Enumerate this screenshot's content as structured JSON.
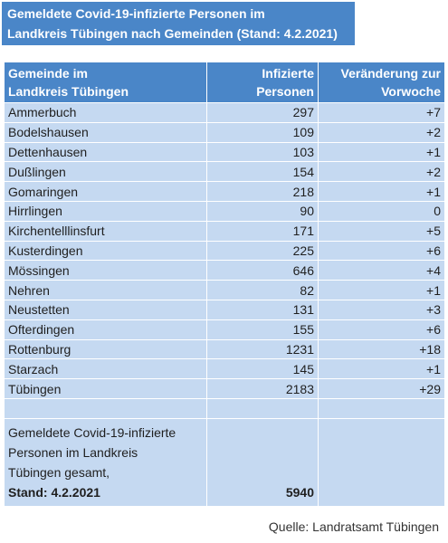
{
  "title": {
    "line1": "Gemeldete Covid-19-infizierte Personen im",
    "line2": "Landkreis Tübingen nach Gemeinden (Stand: 4.2.2021)"
  },
  "table": {
    "headers": {
      "gemeinde_line1": "Gemeinde im",
      "gemeinde_line2": "Landkreis Tübingen",
      "infizierte_line1": "Infizierte",
      "infizierte_line2": "Personen",
      "veraenderung_line1": "Veränderung zur",
      "veraenderung_line2": "Vorwoche"
    },
    "rows": [
      {
        "gemeinde": "Ammerbuch",
        "infizierte": "297",
        "veraenderung": "+7"
      },
      {
        "gemeinde": "Bodelshausen",
        "infizierte": "109",
        "veraenderung": "+2"
      },
      {
        "gemeinde": "Dettenhausen",
        "infizierte": "103",
        "veraenderung": "+1"
      },
      {
        "gemeinde": "Dußlingen",
        "infizierte": "154",
        "veraenderung": "+2"
      },
      {
        "gemeinde": "Gomaringen",
        "infizierte": "218",
        "veraenderung": "+1"
      },
      {
        "gemeinde": "Hirrlingen",
        "infizierte": "90",
        "veraenderung": "0"
      },
      {
        "gemeinde": "Kirchentelllinsfurt",
        "infizierte": "171",
        "veraenderung": "+5"
      },
      {
        "gemeinde": "Kusterdingen",
        "infizierte": "225",
        "veraenderung": "+6"
      },
      {
        "gemeinde": "Mössingen",
        "infizierte": "646",
        "veraenderung": "+4"
      },
      {
        "gemeinde": "Nehren",
        "infizierte": "82",
        "veraenderung": "+1"
      },
      {
        "gemeinde": "Neustetten",
        "infizierte": "131",
        "veraenderung": "+3"
      },
      {
        "gemeinde": "Ofterdingen",
        "infizierte": "155",
        "veraenderung": "+6"
      },
      {
        "gemeinde": "Rottenburg",
        "infizierte": "1231",
        "veraenderung": "+18"
      },
      {
        "gemeinde": "Starzach",
        "infizierte": "145",
        "veraenderung": "+1"
      },
      {
        "gemeinde": "Tübingen",
        "infizierte": "2183",
        "veraenderung": "+29"
      }
    ],
    "total": {
      "label_line1": "Gemeldete Covid-19-infizierte",
      "label_line2": "Personen im Landkreis",
      "label_line3": "Tübingen gesamt,",
      "label_line4": "Stand: 4.2.2021",
      "infizierte": "5940"
    }
  },
  "source": "Quelle: Landratsamt Tübingen",
  "colors": {
    "header_bg": "#4a86c8",
    "cell_bg": "#c5d9f1"
  }
}
